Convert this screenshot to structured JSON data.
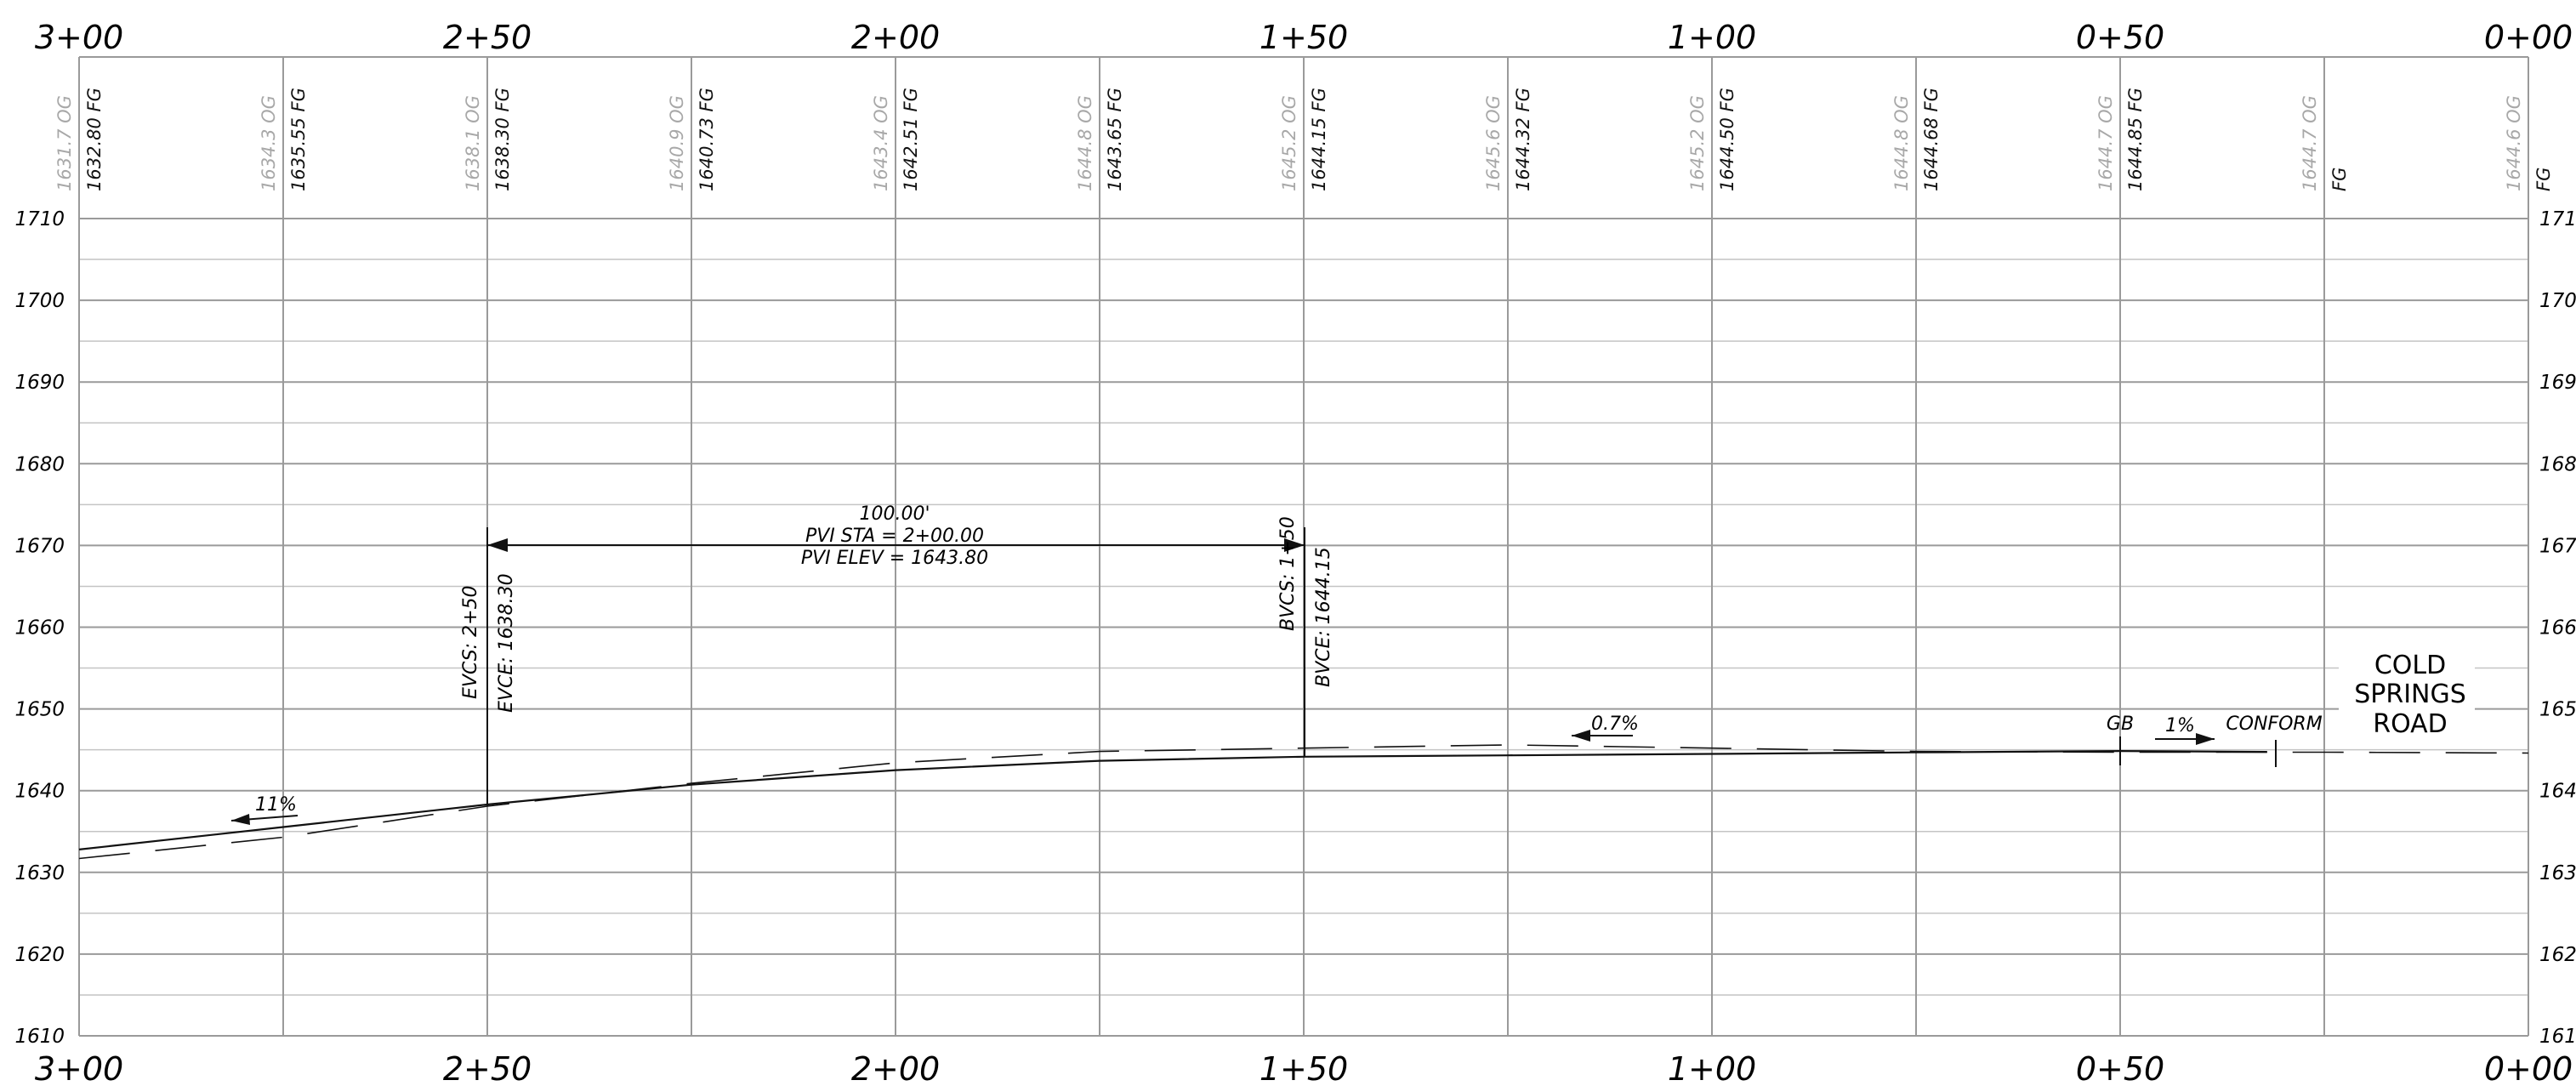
{
  "stations": [
    {
      "label": "3+00",
      "sta": 300,
      "og": "1631.7 OG",
      "fg": "1632.80 FG"
    },
    {
      "label": "",
      "sta": 275,
      "og": "1634.3 OG",
      "fg": "1635.55 FG"
    },
    {
      "label": "2+50",
      "sta": 250,
      "og": "1638.1 OG",
      "fg": "1638.30 FG"
    },
    {
      "label": "",
      "sta": 225,
      "og": "1640.9 OG",
      "fg": "1640.73 FG"
    },
    {
      "label": "2+00",
      "sta": 200,
      "og": "1643.4 OG",
      "fg": "1642.51 FG"
    },
    {
      "label": "",
      "sta": 175,
      "og": "1644.8 OG",
      "fg": "1643.65 FG"
    },
    {
      "label": "1+50",
      "sta": 150,
      "og": "1645.2 OG",
      "fg": "1644.15 FG"
    },
    {
      "label": "",
      "sta": 125,
      "og": "1645.6 OG",
      "fg": "1644.32 FG"
    },
    {
      "label": "1+00",
      "sta": 100,
      "og": "1645.2 OG",
      "fg": "1644.50 FG"
    },
    {
      "label": "",
      "sta": 75,
      "og": "1644.8 OG",
      "fg": "1644.68 FG"
    },
    {
      "label": "0+50",
      "sta": 50,
      "og": "1644.7 OG",
      "fg": "1644.85 FG"
    },
    {
      "label": "",
      "sta": 25,
      "og": "1644.7 OG",
      "fg": "FG"
    },
    {
      "label": "0+00",
      "sta": 0,
      "og": "1644.6 OG",
      "fg": "FG"
    }
  ],
  "elevation_labels": [
    "1710",
    "1700",
    "1690",
    "1680",
    "1670",
    "1660",
    "1650",
    "1640",
    "1630",
    "1620",
    "1610"
  ],
  "elevation_range": [
    1610,
    1710
  ],
  "vertical_curve": {
    "length": "100.00'",
    "pvi_sta": "PVI STA = 2+00.00",
    "pvi_elev": "PVI ELEV = 1643.80",
    "evcs": "EVCS: 2+50",
    "evce": "EVCE: 1638.30",
    "bvcs": "BVCS: 1+50",
    "bvce": "BVCE: 1644.15"
  },
  "grade_notes": {
    "left_grade": "11%",
    "mid_grade": "0.7%",
    "right_grade": "1%",
    "gb": "GB",
    "conform": "CONFORM"
  },
  "road_name": [
    "COLD",
    "SPRINGS",
    "ROAD"
  ],
  "proposed_grade": [
    [
      300,
      1632.8
    ],
    [
      275,
      1635.55
    ],
    [
      250,
      1638.3
    ],
    [
      225,
      1640.73
    ],
    [
      200,
      1642.51
    ],
    [
      175,
      1643.65
    ],
    [
      150,
      1644.15
    ],
    [
      125,
      1644.32
    ],
    [
      100,
      1644.5
    ],
    [
      75,
      1644.68
    ],
    [
      50,
      1644.85
    ],
    [
      32,
      1644.75
    ]
  ],
  "existing_ground": [
    [
      300,
      1631.7
    ],
    [
      275,
      1634.3
    ],
    [
      250,
      1638.1
    ],
    [
      225,
      1640.9
    ],
    [
      200,
      1643.4
    ],
    [
      175,
      1644.8
    ],
    [
      150,
      1645.2
    ],
    [
      125,
      1645.6
    ],
    [
      100,
      1645.2
    ],
    [
      75,
      1644.8
    ],
    [
      50,
      1644.7
    ],
    [
      25,
      1644.7
    ],
    [
      0,
      1644.6
    ]
  ],
  "colors": {
    "ink": "#111111",
    "grid": "#9a9a9a",
    "og_text": "#a8a8a8"
  }
}
